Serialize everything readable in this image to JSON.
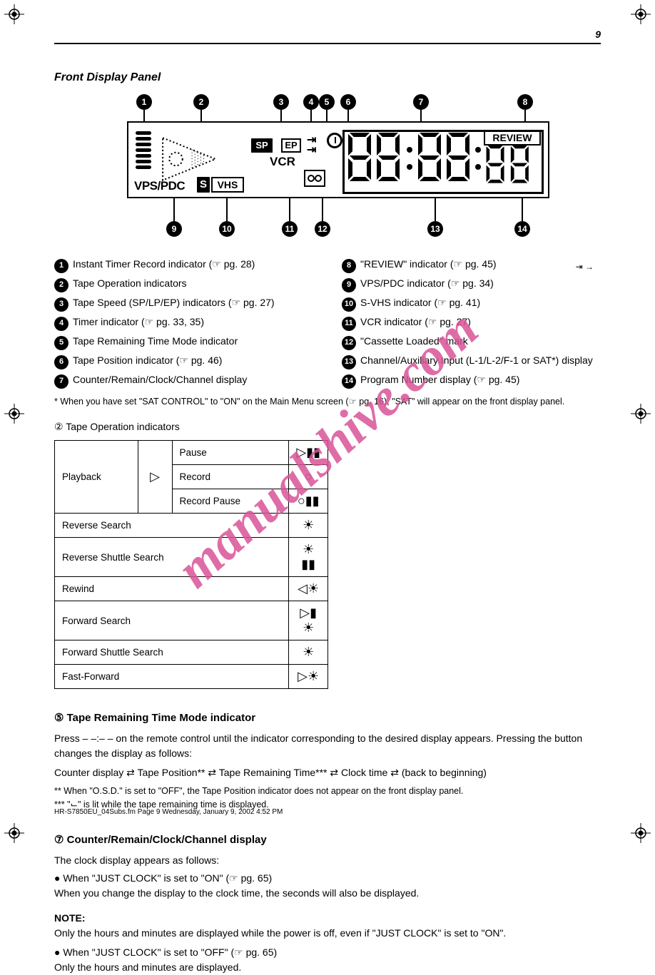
{
  "page_number": "9",
  "section_title": "Front Display Panel",
  "panel": {
    "review_label": "REVIEW",
    "vps_label": "VPS/PDC",
    "vhs_label": "VHS",
    "s_label": "S",
    "sp_label": "SP",
    "ep_label": "EP",
    "vcr_label": "VCR",
    "main_segments": "88:88:",
    "review_segments": "88"
  },
  "callouts": {
    "top": [
      "1",
      "2",
      "3",
      "4",
      "5",
      "6",
      "7",
      "8"
    ],
    "bot": [
      "9",
      "10",
      "11",
      "12",
      "13",
      "14"
    ]
  },
  "desc": [
    {
      "n": "1",
      "t": "Instant Timer Record indicator (☞ pg. 28)"
    },
    {
      "n": "2",
      "t": "Tape Operation indicators"
    },
    {
      "n": "3",
      "t": "Tape Speed (SP/LP/EP) indicators (☞ pg. 27)"
    },
    {
      "n": "4",
      "t": "Timer indicator (☞ pg. 33, 35)"
    },
    {
      "n": "5",
      "t": "Tape Remaining Time Mode indicator"
    },
    {
      "n": "6",
      "t": "Tape Position indicator (☞ pg. 46)"
    },
    {
      "n": "7",
      "t": "Counter/Remain/Clock/Channel display"
    },
    {
      "n": "8",
      "t": "\"REVIEW\" indicator (☞ pg. 45)"
    },
    {
      "n": "9",
      "t": "VPS/PDC indicator (☞ pg. 34)"
    },
    {
      "n": "10",
      "t": "S-VHS indicator (☞ pg. 41)"
    },
    {
      "n": "11",
      "t": "VCR indicator (☞ pg. 27)"
    },
    {
      "n": "12",
      "t": "\"Cassette Loaded\" mark"
    },
    {
      "n": "13",
      "t": "Channel/Auxiliary Input (L-1/L-2/F-1 or SAT*) display"
    },
    {
      "n": "14",
      "t": "Program Number display (☞ pg. 45)"
    }
  ],
  "sat_note": "* When you have set \"SAT CONTROL\" to \"ON\" on the Main Menu screen (☞ pg. 16), \"SAT\" will appear on the front display panel.",
  "table_caption": "② Tape Operation indicators",
  "table": {
    "rows": [
      {
        "c1": "Playback",
        "c1_rowspan": 3,
        "c2": "▷",
        "c2_rowspan": 3,
        "c3": "Pause",
        "sym": "pause"
      },
      {
        "c3": "Record",
        "sym": "rec"
      },
      {
        "c3": "Record Pause",
        "sym": "recpause"
      },
      {
        "c1": "Reverse Search",
        "c1_span": 3,
        "sym": "rsun"
      },
      {
        "c1": "Reverse Shuttle Search",
        "c1_span": 3,
        "sym": "rsunbars"
      },
      {
        "c1": "Rewind",
        "c1_span": 3,
        "sym": "rew"
      },
      {
        "c1": "Forward Search",
        "c1_span": 3,
        "sym": "fsunbars"
      },
      {
        "c1": "Forward Shuttle Search",
        "c1_span": 3,
        "sym": "fsun"
      },
      {
        "c1": "Fast-Forward",
        "c1_span": 3,
        "sym": "ffsun"
      }
    ]
  },
  "remain": {
    "title": "⑤ Tape Remaining Time Mode indicator",
    "body": "Press – –:– – on the remote control until the indicator corresponding to the desired display appears. Pressing the button changes the display as follows:",
    "seq": "Counter display ⇄ Tape Position** ⇄ Tape Remaining Time*** ⇄ Clock time ⇄ (back to beginning)",
    "legend_a": "** When \"O.S.D.\" is set to \"OFF\", the Tape Position indicator does not appear on the front display panel.",
    "legend_b": "*** \"⌙\" is lit while the tape remaining time is displayed.",
    "miniicons_label": "⇥\n→"
  },
  "clock": {
    "title": "⑦ Counter/Remain/Clock/Channel display",
    "lead": "The clock display appears as follows:",
    "line1": "● When \"JUST CLOCK\" is set to \"ON\" (☞ pg. 65)",
    "line1b": "When you change the display to the clock time, the seconds will also be displayed.",
    "note": "NOTE:",
    "note_body": "Only the hours and minutes are displayed while the power is off, even if \"JUST CLOCK\" is set to \"ON\".",
    "line2": "● When \"JUST CLOCK\" is set to \"OFF\" (☞ pg. 65)",
    "line2b": "Only the hours and minutes are displayed."
  },
  "watermark": "manualshive.com",
  "footer": {
    "left": "HR-S7850EU_04Subs.fm  Page 9  Wednesday, January 9, 2002  4:52 PM",
    "right": ""
  }
}
